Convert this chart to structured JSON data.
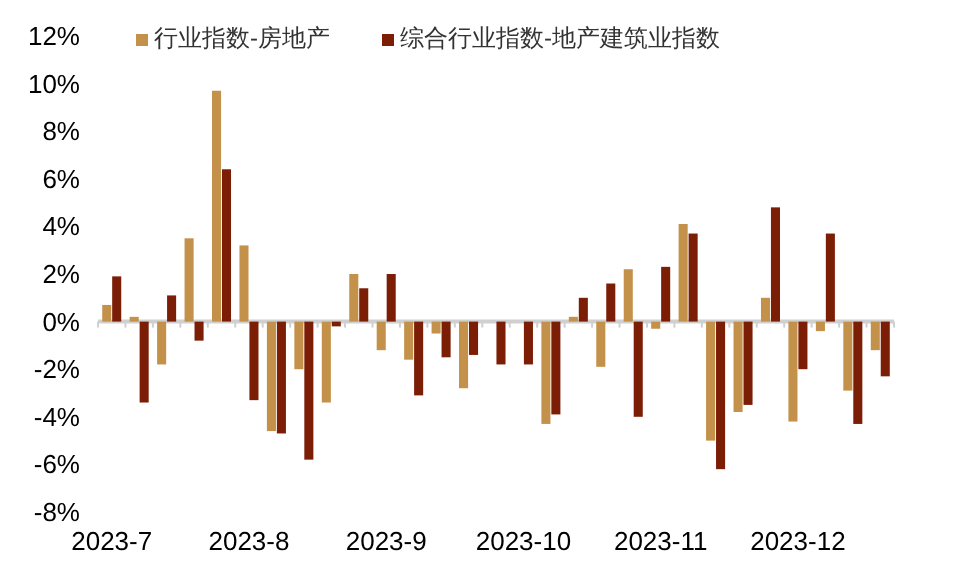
{
  "chart_data": {
    "type": "bar",
    "categories": [
      "2023-7",
      null,
      null,
      null,
      null,
      "2023-8",
      null,
      null,
      null,
      null,
      "2023-9",
      null,
      null,
      null,
      null,
      "2023-10",
      null,
      null,
      null,
      null,
      "2023-11",
      null,
      null,
      null,
      null,
      "2023-12",
      null,
      null,
      null
    ],
    "series": [
      {
        "name": "行业指数-房地产",
        "color": "#c4914a",
        "values": [
          0.7,
          0.2,
          -1.8,
          3.5,
          9.7,
          3.2,
          -4.6,
          -2.0,
          -3.4,
          2.0,
          -1.2,
          -1.6,
          -0.5,
          -2.8,
          0,
          0,
          -4.3,
          0.2,
          -1.9,
          2.2,
          -0.3,
          4.1,
          -5.0,
          -3.8,
          1.0,
          -4.2,
          -0.4,
          -2.9,
          -1.2
        ]
      },
      {
        "name": "综合行业指数-地产建筑业指数",
        "color": "#7b1e05",
        "values": [
          1.9,
          -3.4,
          1.1,
          -0.8,
          6.4,
          -3.3,
          -4.7,
          -5.8,
          -0.2,
          1.4,
          2.0,
          -3.1,
          -1.5,
          -1.4,
          -1.8,
          -1.8,
          -3.9,
          1.0,
          1.6,
          -4.0,
          2.3,
          3.7,
          -6.2,
          -3.5,
          4.8,
          -2.0,
          3.7,
          -4.3,
          -2.3
        ]
      }
    ],
    "ylim": [
      -8,
      12
    ],
    "yticks": [
      {
        "value": -8,
        "label": "-8%"
      },
      {
        "value": -6,
        "label": "-6%"
      },
      {
        "value": -4,
        "label": "-4%"
      },
      {
        "value": -2,
        "label": "-2%"
      },
      {
        "value": 0,
        "label": "0%"
      },
      {
        "value": 2,
        "label": "2%"
      },
      {
        "value": 4,
        "label": "4%"
      },
      {
        "value": 6,
        "label": "6%"
      },
      {
        "value": 8,
        "label": "8%"
      },
      {
        "value": 10,
        "label": "10%"
      },
      {
        "value": 12,
        "label": "12%"
      }
    ],
    "legend": "top"
  }
}
